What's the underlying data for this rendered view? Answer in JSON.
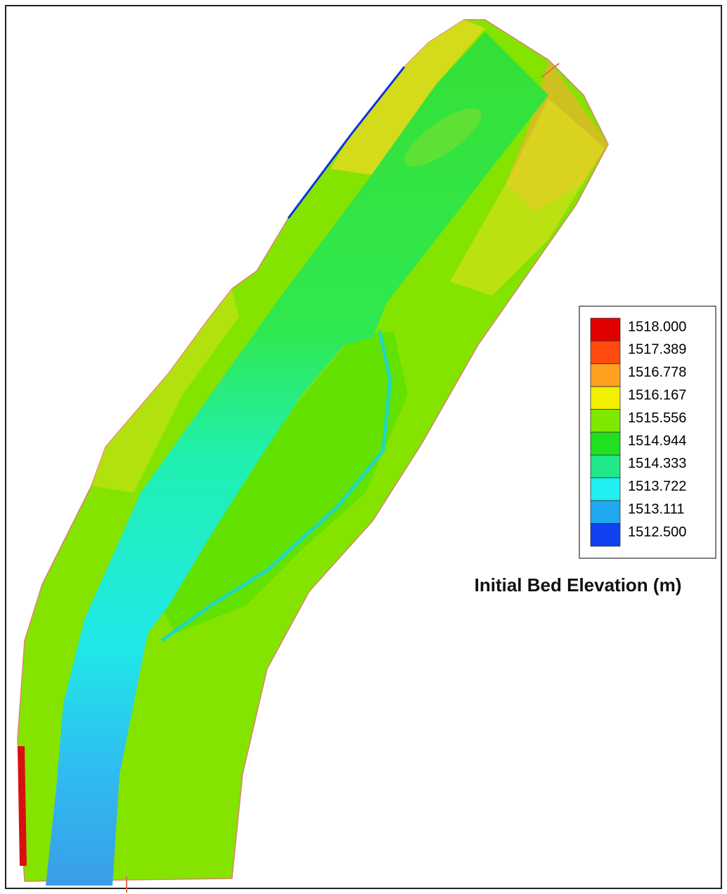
{
  "legend": {
    "title": "Initial Bed Elevation (m)",
    "entries": [
      {
        "label": "1518.000",
        "color": "#e00000"
      },
      {
        "label": "1517.389",
        "color": "#ff4a10"
      },
      {
        "label": "1516.778",
        "color": "#ffa020"
      },
      {
        "label": "1516.167",
        "color": "#f0f000"
      },
      {
        "label": "1515.556",
        "color": "#80e800"
      },
      {
        "label": "1514.944",
        "color": "#20e020"
      },
      {
        "label": "1514.333",
        "color": "#20e888"
      },
      {
        "label": "1513.722",
        "color": "#20f0f0"
      },
      {
        "label": "1513.111",
        "color": "#20a8f0"
      },
      {
        "label": "1512.500",
        "color": "#1040f0"
      }
    ]
  }
}
